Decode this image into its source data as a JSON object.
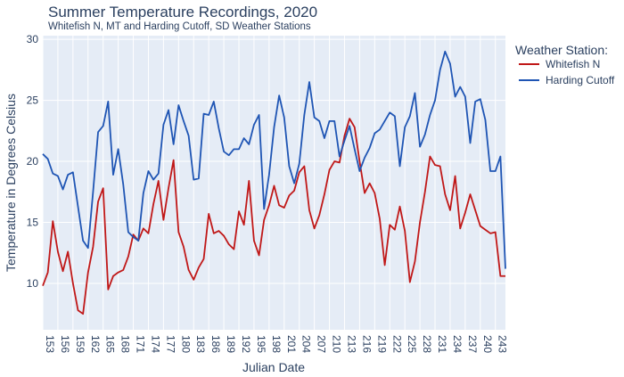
{
  "chart_data": {
    "type": "line",
    "title": "Summer Temperature Recordings, 2020",
    "subtitle": "Whitefish N, MT and Harding Cutoff, SD Weather Stations",
    "xlabel": "Julian Date",
    "ylabel": "Temperature in Degrees Celsius",
    "xlim": [
      153,
      245
    ],
    "ylim": [
      6.2,
      30.3
    ],
    "xticks": [
      153,
      156,
      159,
      162,
      165,
      168,
      171,
      174,
      177,
      180,
      183,
      186,
      189,
      192,
      195,
      198,
      201,
      204,
      207,
      210,
      213,
      216,
      219,
      222,
      225,
      228,
      231,
      234,
      237,
      240,
      243
    ],
    "yticks": [
      10,
      15,
      20,
      25,
      30
    ],
    "grid": true,
    "legend": {
      "title": "Weather Station:",
      "placement": "right"
    },
    "x": [
      153,
      154,
      155,
      156,
      157,
      158,
      159,
      160,
      161,
      162,
      163,
      164,
      165,
      166,
      167,
      168,
      169,
      170,
      171,
      172,
      173,
      174,
      175,
      176,
      177,
      178,
      179,
      180,
      181,
      182,
      183,
      184,
      185,
      186,
      187,
      188,
      189,
      190,
      191,
      192,
      193,
      194,
      195,
      196,
      197,
      198,
      199,
      200,
      201,
      202,
      203,
      204,
      205,
      206,
      207,
      208,
      209,
      210,
      211,
      212,
      213,
      214,
      215,
      216,
      217,
      218,
      219,
      220,
      221,
      222,
      223,
      224,
      225,
      226,
      227,
      228,
      229,
      230,
      231,
      232,
      233,
      234,
      235,
      236,
      237,
      238,
      239,
      240,
      241,
      242,
      243,
      244,
      245
    ],
    "series": [
      {
        "name": "Whitefish N",
        "color": "#c01818",
        "values": [
          9.8,
          10.9,
          15.1,
          12.6,
          11.0,
          12.6,
          10.0,
          7.8,
          7.5,
          10.9,
          13.0,
          16.7,
          17.8,
          9.5,
          10.6,
          10.9,
          11.1,
          12.2,
          14.0,
          13.5,
          14.5,
          14.1,
          16.5,
          18.4,
          15.2,
          17.8,
          20.1,
          14.2,
          13.0,
          11.1,
          10.3,
          11.3,
          12.0,
          15.7,
          14.1,
          14.3,
          13.9,
          13.2,
          12.8,
          15.9,
          14.8,
          18.4,
          13.5,
          12.3,
          15.2,
          16.4,
          18.0,
          16.4,
          16.2,
          17.2,
          17.6,
          19.1,
          19.6,
          16.0,
          14.5,
          15.6,
          17.3,
          19.3,
          20.0,
          19.9,
          22.1,
          23.5,
          22.8,
          20.0,
          17.4,
          18.2,
          17.4,
          15.3,
          11.5,
          14.8,
          14.4,
          16.3,
          14.3,
          10.1,
          11.8,
          15.0,
          17.5,
          20.4,
          19.7,
          19.6,
          17.3,
          16.0,
          18.8,
          14.5,
          15.8,
          17.3,
          16.0,
          14.7,
          14.4,
          14.1,
          14.2,
          10.6,
          10.6
        ]
      },
      {
        "name": "Harding Cutoff",
        "color": "#1f55b4",
        "values": [
          20.6,
          20.2,
          19.0,
          18.8,
          17.7,
          18.9,
          19.1,
          16.3,
          13.5,
          12.9,
          17.5,
          22.4,
          22.9,
          24.9,
          18.9,
          21.0,
          18.1,
          14.2,
          13.8,
          13.5,
          17.4,
          19.2,
          18.5,
          19.0,
          23.0,
          24.2,
          21.4,
          24.6,
          23.3,
          22.1,
          18.5,
          18.6,
          23.9,
          23.8,
          24.9,
          22.7,
          20.8,
          20.5,
          21.0,
          21.0,
          21.9,
          21.4,
          23.0,
          23.8,
          16.1,
          18.9,
          22.8,
          25.4,
          23.6,
          19.6,
          18.2,
          19.8,
          23.8,
          26.5,
          23.6,
          23.3,
          21.9,
          23.3,
          23.3,
          20.4,
          21.7,
          22.9,
          21.0,
          19.2,
          20.3,
          21.1,
          22.3,
          22.6,
          23.3,
          24.0,
          23.7,
          19.6,
          22.8,
          23.7,
          25.6,
          21.2,
          22.2,
          23.8,
          25.0,
          27.5,
          29.0,
          28.0,
          25.3,
          26.1,
          25.3,
          21.5,
          24.9,
          25.1,
          23.4,
          19.2,
          19.2,
          20.4,
          11.2
        ]
      }
    ]
  }
}
